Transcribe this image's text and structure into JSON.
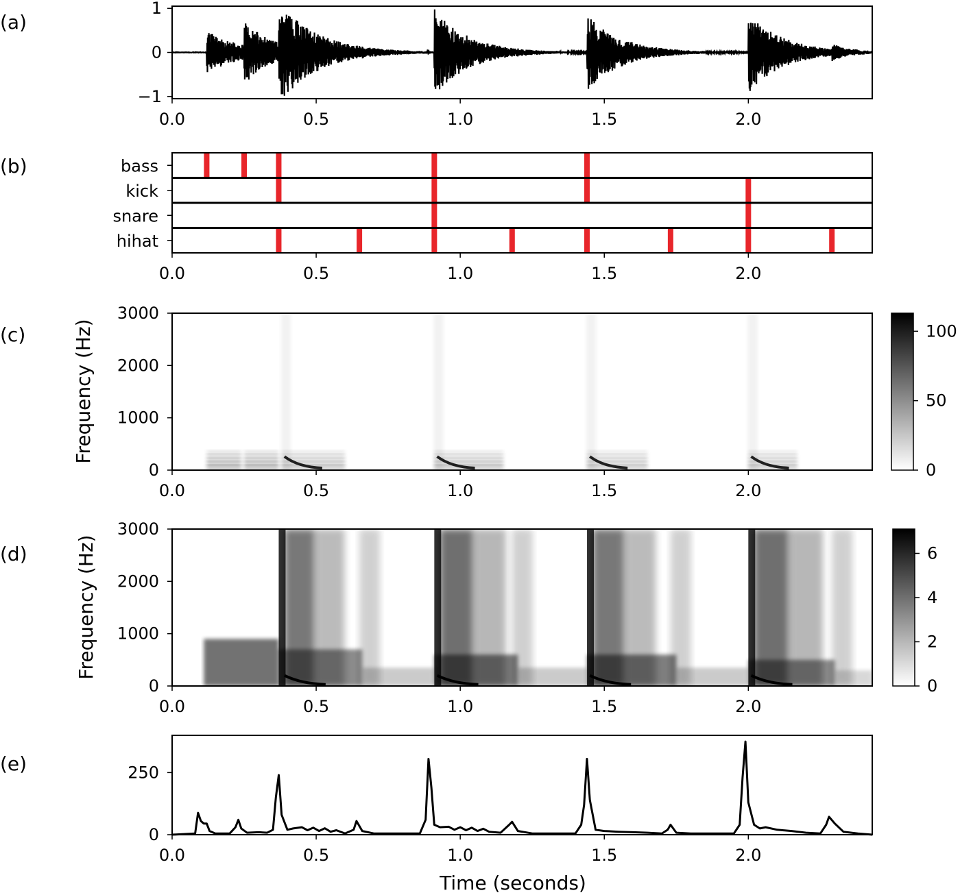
{
  "chart_data": [
    {
      "panel": "(a)",
      "type": "line",
      "title": "",
      "xlabel": "",
      "ylabel": "",
      "xlim": [
        0.0,
        2.43
      ],
      "ylim": [
        -1.05,
        1.05
      ],
      "x_ticks": [
        "0.0",
        "0.5",
        "1.0",
        "1.5",
        "2.0"
      ],
      "y_ticks": [
        "1",
        "0",
        "−1"
      ],
      "x_tick_values": [
        0.0,
        0.5,
        1.0,
        1.5,
        2.0
      ],
      "y_tick_values": [
        1,
        0,
        -1
      ],
      "onsets": [
        {
          "t": 0.12,
          "amp": 0.5,
          "decay": 0.12
        },
        {
          "t": 0.25,
          "amp": 0.55,
          "decay": 0.1
        },
        {
          "t": 0.37,
          "amp": 0.95,
          "decay": 0.14
        },
        {
          "t": 0.91,
          "amp": 0.97,
          "decay": 0.12
        },
        {
          "t": 1.44,
          "amp": 0.85,
          "decay": 0.12
        },
        {
          "t": 2.0,
          "amp": 0.92,
          "decay": 0.12
        },
        {
          "t": 2.29,
          "amp": 0.12,
          "decay": 0.05
        }
      ]
    },
    {
      "panel": "(b)",
      "type": "table",
      "rows": [
        "bass",
        "kick",
        "snare",
        "hihat"
      ],
      "xlim": [
        0.0,
        2.43
      ],
      "x_ticks": [
        "0.0",
        "0.5",
        "1.0",
        "1.5",
        "2.0"
      ],
      "x_tick_values": [
        0.0,
        0.5,
        1.0,
        1.5,
        2.0
      ],
      "events": {
        "bass": [
          0.12,
          0.25,
          0.37,
          0.91,
          1.44
        ],
        "kick": [
          0.37,
          0.91,
          1.44,
          2.0
        ],
        "snare": [
          0.91,
          2.0
        ],
        "hihat": [
          0.37,
          0.65,
          0.91,
          1.18,
          1.44,
          1.73,
          2.0,
          2.29
        ]
      },
      "event_color": "#e8262b"
    },
    {
      "panel": "(c)",
      "type": "heatmap",
      "ylabel": "Frequency (Hz)",
      "xlim": [
        0.0,
        2.43
      ],
      "ylim": [
        0,
        3000
      ],
      "x_ticks": [
        "0.0",
        "0.5",
        "1.0",
        "1.5",
        "2.0"
      ],
      "x_tick_values": [
        0.0,
        0.5,
        1.0,
        1.5,
        2.0
      ],
      "y_ticks": [
        "3000",
        "2000",
        "1000",
        "0"
      ],
      "y_tick_values": [
        3000,
        2000,
        1000,
        0
      ],
      "colorbar_ticks": [
        "100",
        "50",
        "0"
      ],
      "colorbar_values": [
        100,
        50,
        0
      ],
      "colorbar_range": [
        0,
        113
      ]
    },
    {
      "panel": "(d)",
      "type": "heatmap",
      "ylabel": "Frequency (Hz)",
      "xlim": [
        0.0,
        2.43
      ],
      "ylim": [
        0,
        3000
      ],
      "x_ticks": [
        "0.0",
        "0.5",
        "1.0",
        "1.5",
        "2.0"
      ],
      "x_tick_values": [
        0.0,
        0.5,
        1.0,
        1.5,
        2.0
      ],
      "y_ticks": [
        "3000",
        "2000",
        "1000",
        "0"
      ],
      "y_tick_values": [
        3000,
        2000,
        1000,
        0
      ],
      "colorbar_ticks": [
        "6",
        "4",
        "2",
        "0"
      ],
      "colorbar_values": [
        6,
        4,
        2,
        0
      ],
      "colorbar_range": [
        0,
        7.1
      ]
    },
    {
      "panel": "(e)",
      "type": "line",
      "xlabel": "Time (seconds)",
      "xlim": [
        0.0,
        2.43
      ],
      "ylim": [
        0,
        400
      ],
      "x_ticks": [
        "0.0",
        "0.5",
        "1.0",
        "1.5",
        "2.0"
      ],
      "x_tick_values": [
        0.0,
        0.5,
        1.0,
        1.5,
        2.0
      ],
      "y_ticks": [
        "250",
        "0"
      ],
      "y_tick_values": [
        250,
        0
      ],
      "x": [
        0.0,
        0.08,
        0.09,
        0.1,
        0.11,
        0.12,
        0.13,
        0.15,
        0.2,
        0.22,
        0.23,
        0.24,
        0.26,
        0.3,
        0.33,
        0.35,
        0.36,
        0.37,
        0.38,
        0.4,
        0.42,
        0.45,
        0.47,
        0.49,
        0.51,
        0.53,
        0.55,
        0.57,
        0.6,
        0.63,
        0.64,
        0.66,
        0.7,
        0.75,
        0.8,
        0.86,
        0.88,
        0.89,
        0.9,
        0.91,
        0.93,
        0.96,
        0.98,
        1.0,
        1.02,
        1.04,
        1.06,
        1.08,
        1.1,
        1.14,
        1.17,
        1.18,
        1.2,
        1.25,
        1.3,
        1.35,
        1.4,
        1.42,
        1.43,
        1.44,
        1.45,
        1.47,
        1.5,
        1.55,
        1.6,
        1.65,
        1.7,
        1.72,
        1.73,
        1.75,
        1.8,
        1.85,
        1.9,
        1.95,
        1.97,
        1.98,
        1.99,
        2.0,
        2.02,
        2.04,
        2.06,
        2.1,
        2.15,
        2.2,
        2.25,
        2.27,
        2.28,
        2.3,
        2.33,
        2.38,
        2.43
      ],
      "y": [
        0,
        5,
        88,
        55,
        45,
        45,
        15,
        5,
        5,
        30,
        60,
        25,
        8,
        10,
        8,
        20,
        150,
        240,
        80,
        20,
        25,
        30,
        18,
        28,
        15,
        26,
        12,
        18,
        5,
        20,
        55,
        15,
        5,
        5,
        5,
        5,
        60,
        305,
        190,
        40,
        30,
        32,
        20,
        30,
        18,
        28,
        15,
        24,
        12,
        8,
        40,
        52,
        15,
        5,
        5,
        5,
        5,
        40,
        120,
        305,
        140,
        20,
        15,
        12,
        10,
        8,
        5,
        20,
        40,
        8,
        5,
        5,
        5,
        5,
        40,
        230,
        375,
        130,
        40,
        25,
        30,
        20,
        15,
        8,
        5,
        40,
        72,
        45,
        12,
        5,
        0
      ]
    }
  ]
}
